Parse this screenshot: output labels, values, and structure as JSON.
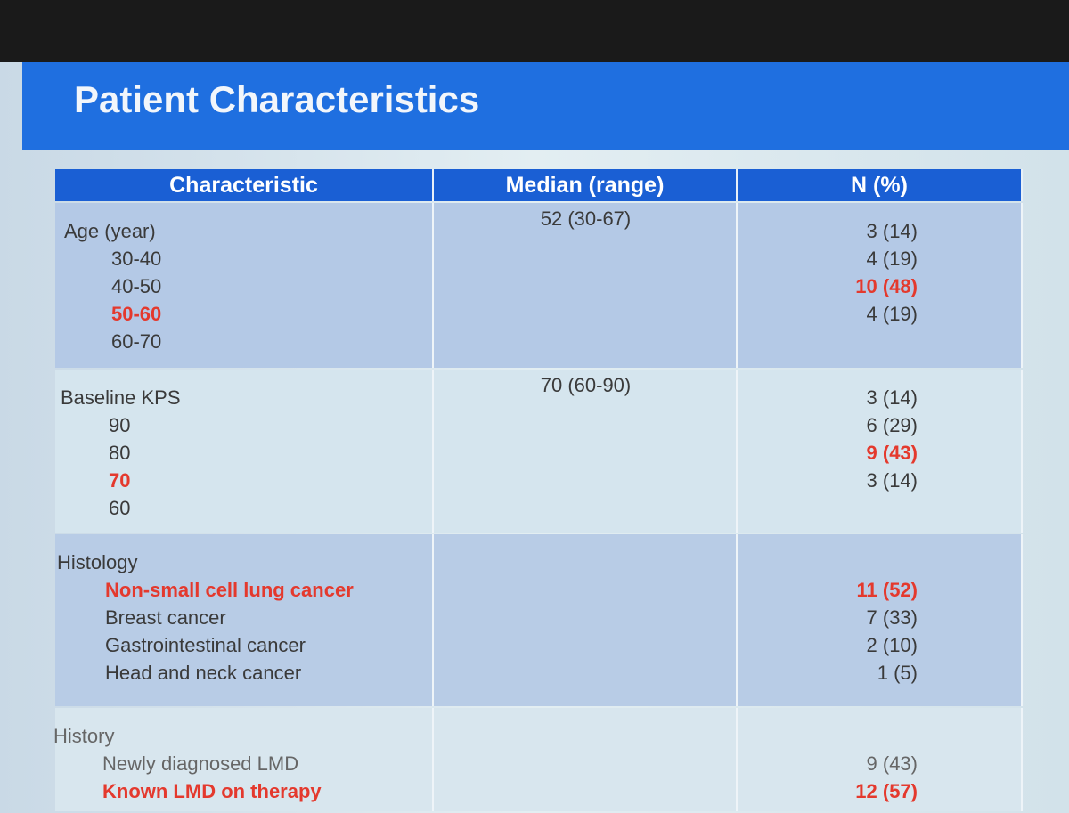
{
  "header": {
    "title": "Patient Characteristics"
  },
  "table": {
    "columns": [
      "Characteristic",
      "Median (range)",
      "N (%)"
    ],
    "sections": [
      {
        "label": "Age (year)",
        "median": "52 (30-67)",
        "rows": [
          {
            "label": "30-40",
            "n": "3 (14)"
          },
          {
            "label": "40-50",
            "n": "4 (19)"
          },
          {
            "label": "50-60",
            "n": "10 (48)",
            "highlight": true
          },
          {
            "label": "60-70",
            "n": "4 (19)"
          }
        ]
      },
      {
        "label": "Baseline KPS",
        "median": "70 (60-90)",
        "rows": [
          {
            "label": "90",
            "n": "3 (14)"
          },
          {
            "label": "80",
            "n": "6 (29)"
          },
          {
            "label": "70",
            "n": "9 (43)",
            "highlight": true
          },
          {
            "label": "60",
            "n": "3 (14)"
          }
        ]
      },
      {
        "label": "Histology",
        "rows": [
          {
            "label": "Non-small cell lung cancer",
            "n": "11 (52)",
            "highlight": true
          },
          {
            "label": "Breast cancer",
            "n": "7 (33)"
          },
          {
            "label": "Gastrointestinal cancer",
            "n": "2 (10)"
          },
          {
            "label": "Head and neck cancer",
            "n": "1 (5)"
          }
        ]
      },
      {
        "label": "History",
        "rows": [
          {
            "label": "Newly diagnosed LMD",
            "n": "9 (43)"
          },
          {
            "label": "Known LMD on therapy",
            "n": "12 (57)",
            "highlight": true
          }
        ]
      }
    ]
  }
}
